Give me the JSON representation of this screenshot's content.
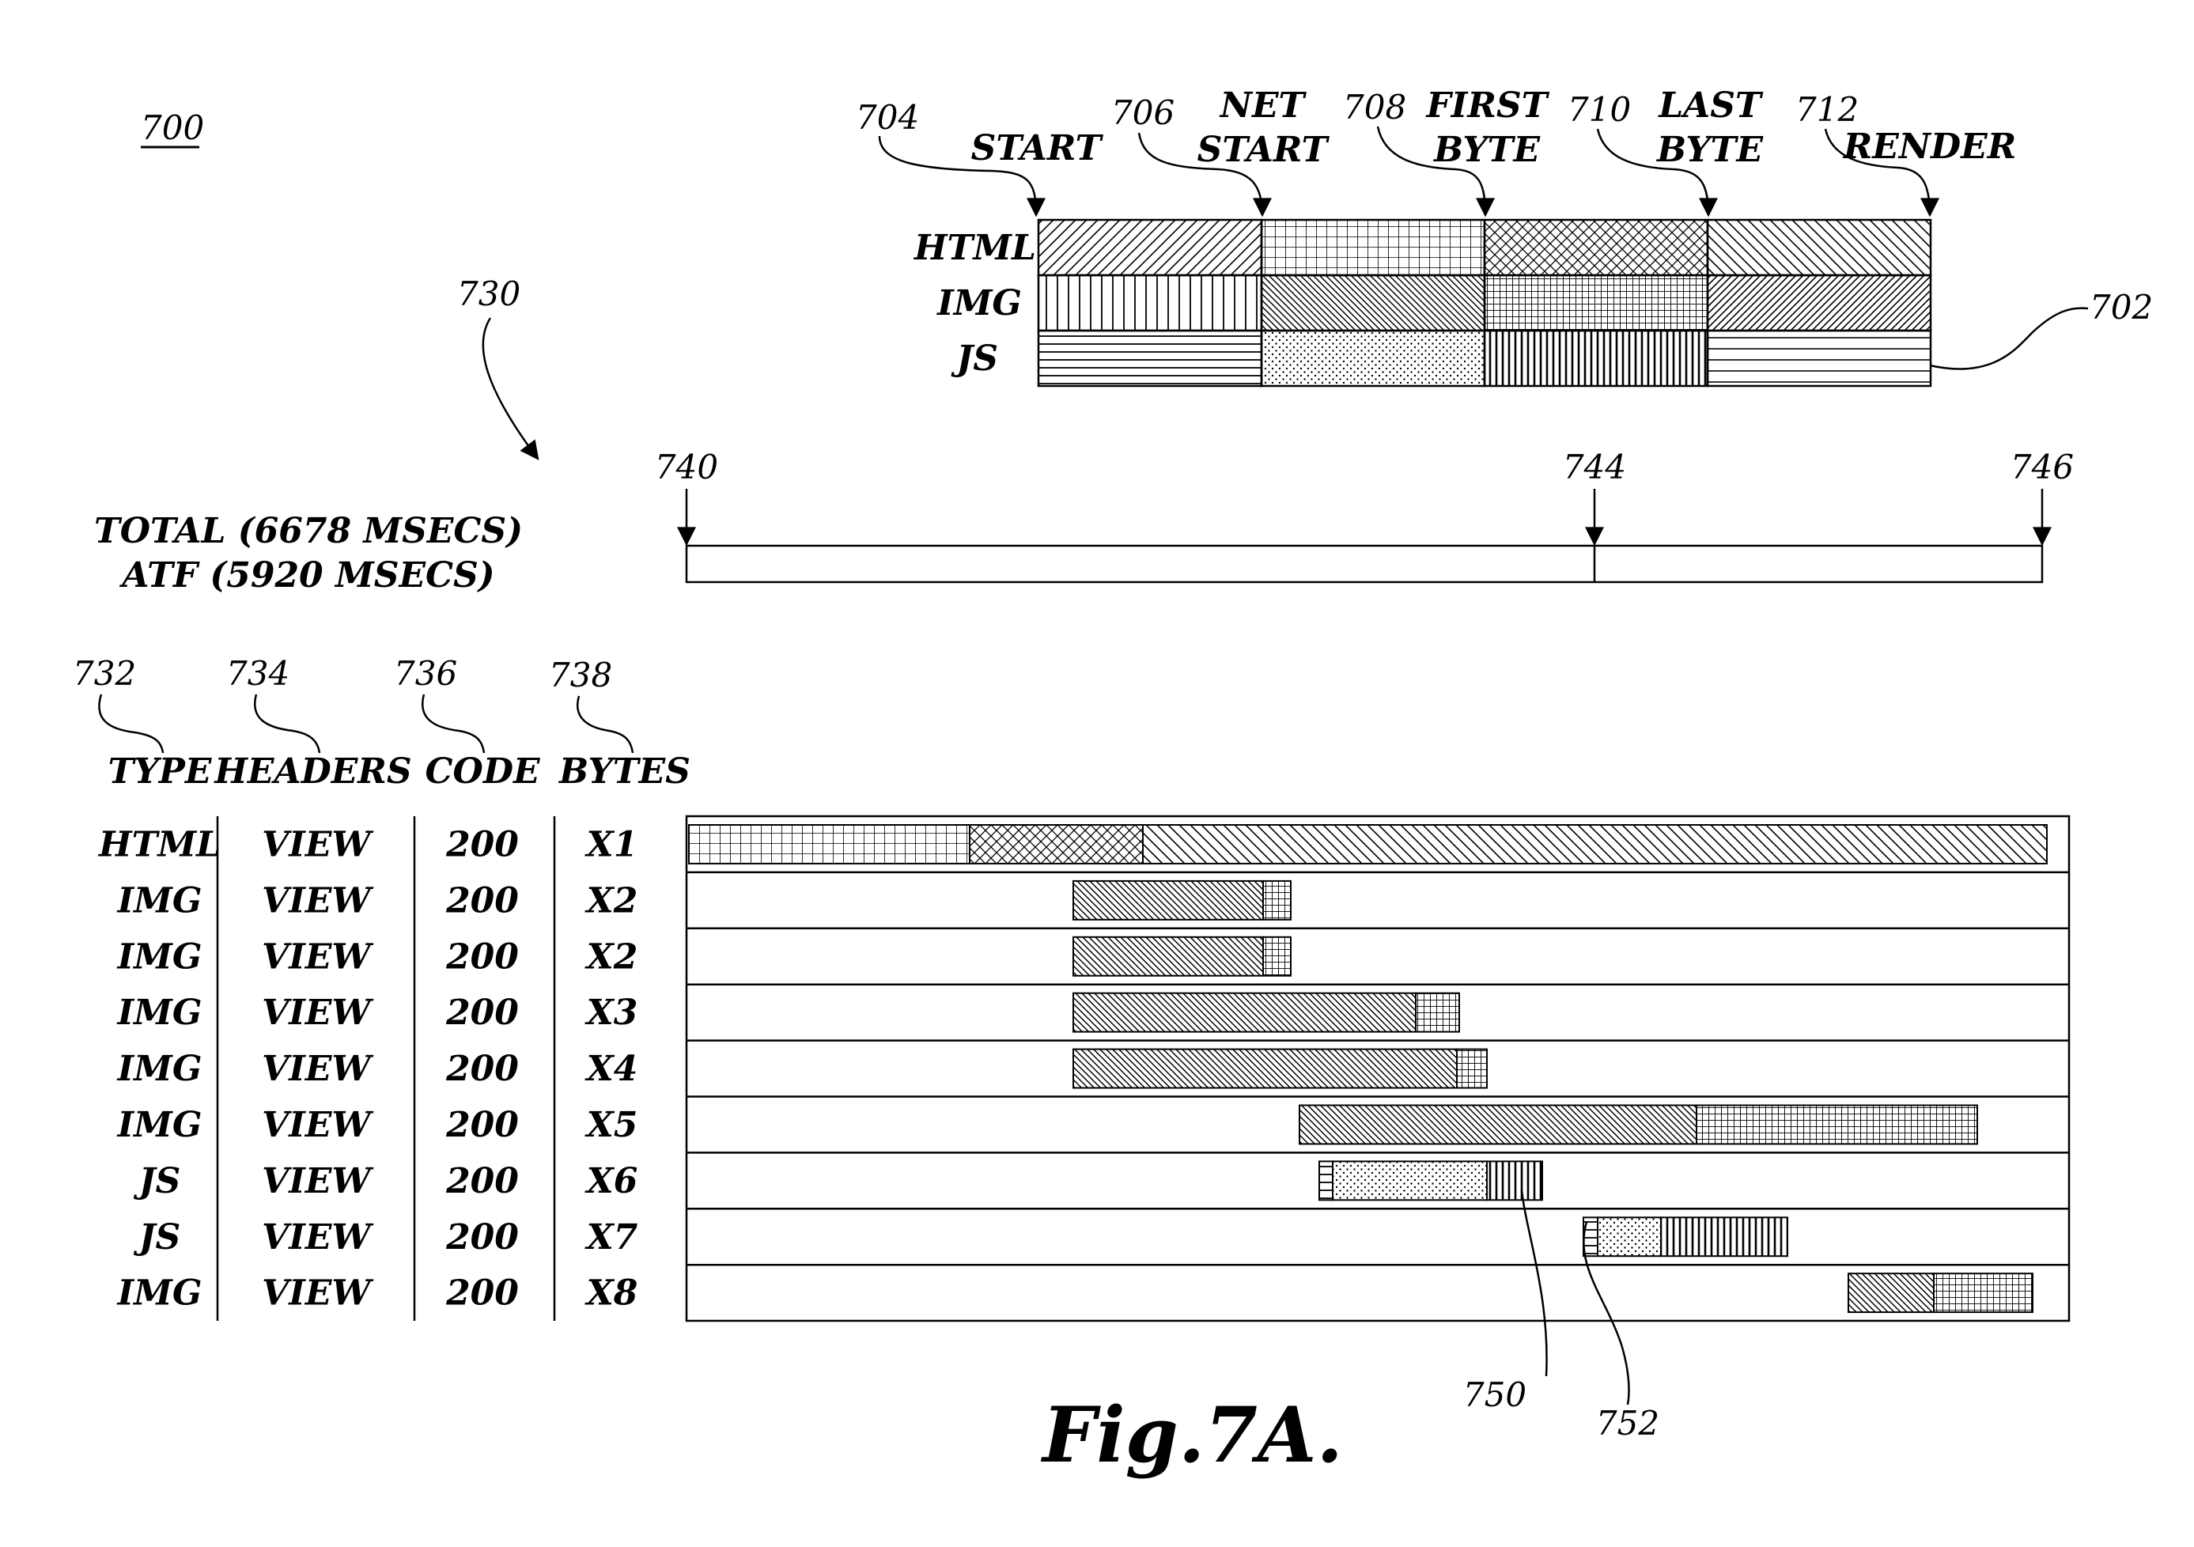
{
  "figure": {
    "id": "700",
    "caption": "Fig.7A."
  },
  "legend": {
    "ref": "702",
    "rows": [
      "HTML",
      "IMG",
      "JS"
    ],
    "phases": [
      {
        "ref": "704",
        "label": [
          "START"
        ]
      },
      {
        "ref": "706",
        "label": [
          "NET",
          "START"
        ]
      },
      {
        "ref": "708",
        "label": [
          "FIRST",
          "BYTE"
        ]
      },
      {
        "ref": "710",
        "label": [
          "LAST",
          "BYTE"
        ]
      },
      {
        "ref": "712",
        "label": [
          "RENDER"
        ]
      }
    ],
    "patterns": [
      [
        "diag-fwd",
        "grid",
        "crosshatch",
        "diag-back"
      ],
      [
        "vert",
        "diag-back-dense",
        "grid-dense",
        "diag-fwd-dense"
      ],
      [
        "horiz",
        "dots",
        "vert-dense",
        "horiz-wide"
      ]
    ]
  },
  "timeline": {
    "ref": "730",
    "total": "TOTAL (6678 MSECS)",
    "atf": "ATF (5920 MSECS)",
    "markers": [
      "740",
      "744",
      "746"
    ]
  },
  "table": {
    "columns": [
      {
        "ref": "732",
        "label": "TYPE"
      },
      {
        "ref": "734",
        "label": "HEADERS"
      },
      {
        "ref": "736",
        "label": "CODE"
      },
      {
        "ref": "738",
        "label": "BYTES"
      }
    ],
    "rows": [
      {
        "type": "HTML",
        "headers": "VIEW",
        "code": "200",
        "bytes": "X1"
      },
      {
        "type": "IMG",
        "headers": "VIEW",
        "code": "200",
        "bytes": "X2"
      },
      {
        "type": "IMG",
        "headers": "VIEW",
        "code": "200",
        "bytes": "X2"
      },
      {
        "type": "IMG",
        "headers": "VIEW",
        "code": "200",
        "bytes": "X3"
      },
      {
        "type": "IMG",
        "headers": "VIEW",
        "code": "200",
        "bytes": "X4"
      },
      {
        "type": "IMG",
        "headers": "VIEW",
        "code": "200",
        "bytes": "X5"
      },
      {
        "type": "JS",
        "headers": "VIEW",
        "code": "200",
        "bytes": "X6"
      },
      {
        "type": "JS",
        "headers": "VIEW",
        "code": "200",
        "bytes": "X7"
      },
      {
        "type": "IMG",
        "headers": "VIEW",
        "code": "200",
        "bytes": "X8"
      }
    ]
  },
  "callouts": [
    "750",
    "752"
  ]
}
